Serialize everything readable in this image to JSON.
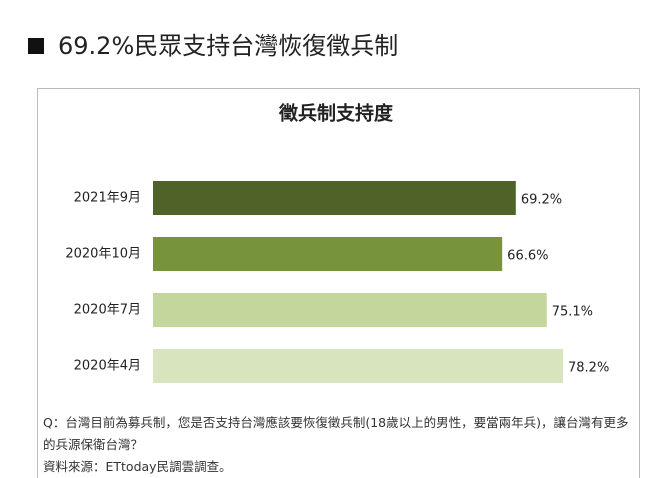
{
  "header": {
    "title": "69.2%民眾支持台灣恢復徵兵制"
  },
  "chart_data": {
    "type": "bar",
    "orientation": "horizontal",
    "title": "徵兵制支持度",
    "categories": [
      "2021年9月",
      "2020年10月",
      "2020年7月",
      "2020年4月"
    ],
    "values": [
      69.2,
      66.6,
      75.1,
      78.2
    ],
    "value_labels": [
      "69.2%",
      "66.6%",
      "75.1%",
      "78.2%"
    ],
    "colors": [
      "#4f6228",
      "#77933c",
      "#c3d69b",
      "#d7e4bd"
    ],
    "notes": [
      "Q：台灣目前為募兵制，您是否支持台灣應該要恢復徵兵制(18歲以上的男性，要當兩年兵)，讓台灣有更多的兵源保衛台灣？",
      "資料來源：ETtoday民調雲調查。"
    ]
  }
}
